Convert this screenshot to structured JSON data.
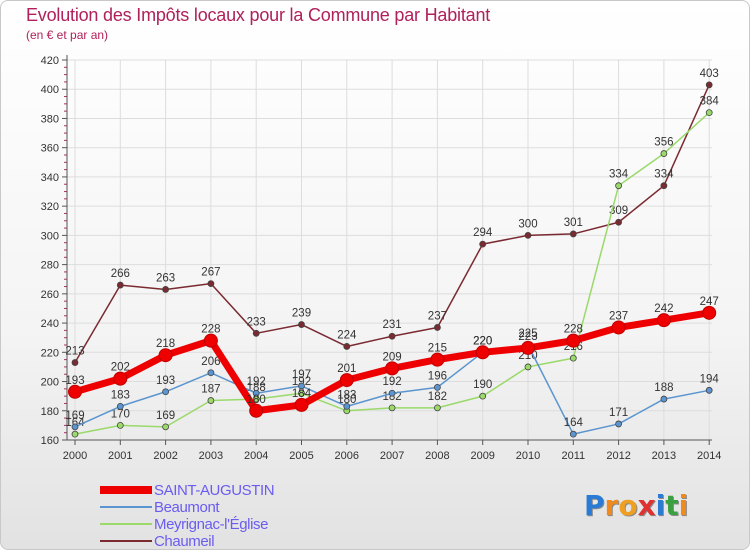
{
  "colors": {
    "title": "#b0205a",
    "axis": "#555555",
    "grid": "#dddddd",
    "legend_text": "#6a5cf0"
  },
  "chart_data": {
    "type": "line",
    "title": "Evolution des Impôts locaux pour la Commune par Habitant",
    "subtitle": "(en € et par an)",
    "x": [
      2000,
      2001,
      2002,
      2003,
      2004,
      2005,
      2006,
      2007,
      2008,
      2009,
      2010,
      2011,
      2012,
      2013,
      2014
    ],
    "x_tick_labels": [
      "2000",
      "2001",
      "2002",
      "2003",
      "2004",
      "2005",
      "2006",
      "2007",
      "2008",
      "2009",
      "2010",
      "2011",
      "2012",
      "2013",
      "2014"
    ],
    "ylim": [
      160,
      420
    ],
    "y_ticks": [
      160,
      180,
      200,
      220,
      240,
      260,
      280,
      300,
      320,
      340,
      360,
      380,
      400,
      420
    ],
    "y_tick_labels": [
      "160",
      "180",
      "200",
      "220",
      "240",
      "260",
      "280",
      "300",
      "320",
      "340",
      "360",
      "380",
      "400",
      "420"
    ],
    "grid": true,
    "legend_position": "bottom-left",
    "series": [
      {
        "name": "Chaumeil",
        "color": "#7a2a30",
        "values": [
          213,
          266,
          263,
          267,
          233,
          239,
          224,
          231,
          237,
          294,
          300,
          301,
          309,
          334,
          403
        ],
        "labels": [
          "213",
          "266",
          "263",
          "267",
          "233",
          "239",
          "224",
          "231",
          "237",
          "294",
          "300",
          "301",
          "309",
          "334",
          "403"
        ]
      },
      {
        "name": "Meyrignac-l'Église",
        "color": "#9ad96a",
        "values": [
          164,
          170,
          169,
          187,
          188,
          192,
          180,
          182,
          182,
          190,
          210,
          216,
          334,
          356,
          384
        ],
        "labels": [
          "164",
          "170",
          "169",
          "187",
          "188",
          "192",
          "180",
          "182",
          "182",
          "190",
          "210",
          "216",
          "334",
          "356",
          "384"
        ]
      },
      {
        "name": "Beaumont",
        "color": "#5b95cf",
        "values": [
          169,
          183,
          193,
          206,
          192,
          197,
          183,
          192,
          196,
          220,
          225,
          164,
          171,
          188,
          194
        ],
        "labels": [
          "169",
          "183",
          "193",
          "206",
          "192",
          "197",
          "183",
          "192",
          "196",
          "220",
          "225",
          "164",
          "171",
          "188",
          "194"
        ]
      },
      {
        "name": "SAINT-AUGUSTIN",
        "color": "#ee0000",
        "values": [
          193,
          202,
          218,
          228,
          180,
          184,
          201,
          209,
          215,
          220,
          223,
          228,
          237,
          242,
          247
        ],
        "labels": [
          "193",
          "202",
          "218",
          "228",
          "180",
          "184",
          "201",
          "209",
          "215",
          "220",
          "223",
          "228",
          "237",
          "242",
          "247"
        ]
      }
    ]
  },
  "legend": {
    "items": [
      {
        "label": "SAINT-AUGUSTIN",
        "color": "#ee0000",
        "width": 8
      },
      {
        "label": "Beaumont",
        "color": "#5b95cf",
        "width": 2
      },
      {
        "label": "Meyrignac-l'Église",
        "color": "#9ad96a",
        "width": 2
      },
      {
        "label": "Chaumeil",
        "color": "#7a2a30",
        "width": 2
      }
    ]
  },
  "logo": {
    "letters": [
      "P",
      "r",
      "o",
      "x",
      "i",
      "t",
      "i"
    ],
    "colors": [
      "#2a7bd5",
      "#f08a1c",
      "#f0a020",
      "#e03030",
      "#2a7bd5",
      "#3aa040",
      "#f08a1c"
    ]
  }
}
